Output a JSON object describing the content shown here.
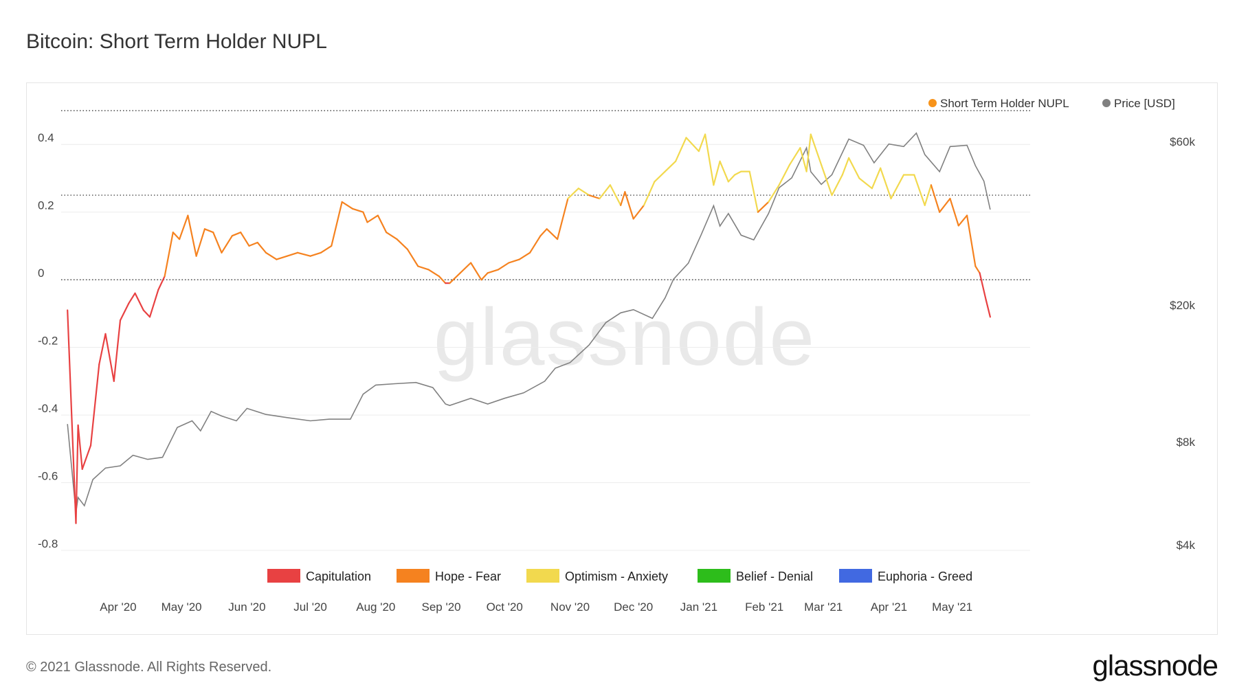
{
  "title": "Bitcoin: Short Term Holder NUPL",
  "footer": {
    "copyright": "© 2021 Glassnode. All Rights Reserved.",
    "logo": "glassnode"
  },
  "watermark": "glassnode",
  "chart_data": {
    "type": "line",
    "title": "Bitcoin: Short Term Holder NUPL",
    "x_tick_labels": [
      "Apr '20",
      "May '20",
      "Jun '20",
      "Jul '20",
      "Aug '20",
      "Sep '20",
      "Oct '20",
      "Nov '20",
      "Dec '20",
      "Jan '21",
      "Feb '21",
      "Mar '21",
      "Apr '21",
      "May '21"
    ],
    "x_range": [
      "2020-03-05",
      "2021-05-20"
    ],
    "y_left": {
      "ticks": [
        0.4,
        0.2,
        0,
        -0.2,
        -0.4,
        -0.6,
        -0.8
      ],
      "tick_labels": [
        "0.4",
        "0.2",
        "0",
        "-0.2",
        "-0.4",
        "-0.6",
        "-0.8"
      ],
      "range": [
        -0.8,
        0.5
      ]
    },
    "y_right": {
      "scale": "log",
      "ticks": [
        60000,
        20000,
        8000,
        4000
      ],
      "tick_labels": [
        "$60k",
        "$20k",
        "$8k",
        "$4k"
      ],
      "range": [
        4000,
        60000
      ]
    },
    "reference_lines": [
      0.5,
      0.25,
      0
    ],
    "legend_top": [
      {
        "name": "Short Term Holder NUPL",
        "color": "#f7931a"
      },
      {
        "name": "Price [USD]",
        "color": "#808080"
      }
    ],
    "legend_bottom": [
      {
        "name": "Capitulation",
        "color": "#e84142"
      },
      {
        "name": "Hope - Fear",
        "color": "#f5821f"
      },
      {
        "name": "Optimism - Anxiety",
        "color": "#f2d94e"
      },
      {
        "name": "Belief - Denial",
        "color": "#2dbd1b"
      },
      {
        "name": "Euphoria - Greed",
        "color": "#4169e1"
      }
    ],
    "legend_placement": {
      "series": "top-right",
      "zones": "bottom"
    },
    "grid": true,
    "series": [
      {
        "name": "Short Term Holder NUPL",
        "x": [
          "2020-03-08",
          "2020-03-12",
          "2020-03-13",
          "2020-03-15",
          "2020-03-19",
          "2020-03-23",
          "2020-03-26",
          "2020-03-30",
          "2020-04-02",
          "2020-04-06",
          "2020-04-09",
          "2020-04-13",
          "2020-04-16",
          "2020-04-20",
          "2020-04-23",
          "2020-04-27",
          "2020-04-30",
          "2020-05-04",
          "2020-05-08",
          "2020-05-12",
          "2020-05-16",
          "2020-05-20",
          "2020-05-25",
          "2020-05-29",
          "2020-06-02",
          "2020-06-06",
          "2020-06-10",
          "2020-06-15",
          "2020-06-20",
          "2020-06-25",
          "2020-07-01",
          "2020-07-06",
          "2020-07-11",
          "2020-07-16",
          "2020-07-21",
          "2020-07-26",
          "2020-07-28",
          "2020-08-02",
          "2020-08-06",
          "2020-08-11",
          "2020-08-16",
          "2020-08-21",
          "2020-08-26",
          "2020-08-31",
          "2020-09-03",
          "2020-09-05",
          "2020-09-10",
          "2020-09-15",
          "2020-09-20",
          "2020-09-23",
          "2020-09-28",
          "2020-10-03",
          "2020-10-08",
          "2020-10-13",
          "2020-10-18",
          "2020-10-21",
          "2020-10-26",
          "2020-10-31",
          "2020-11-05",
          "2020-11-10",
          "2020-11-15",
          "2020-11-20",
          "2020-11-25",
          "2020-11-27",
          "2020-12-01",
          "2020-12-06",
          "2020-12-11",
          "2020-12-16",
          "2020-12-21",
          "2020-12-26",
          "2021-01-01",
          "2021-01-04",
          "2021-01-08",
          "2021-01-11",
          "2021-01-15",
          "2021-01-18",
          "2021-01-21",
          "2021-01-25",
          "2021-01-29",
          "2021-02-03",
          "2021-02-08",
          "2021-02-13",
          "2021-02-18",
          "2021-02-21",
          "2021-02-23",
          "2021-02-28",
          "2021-03-05",
          "2021-03-10",
          "2021-03-13",
          "2021-03-18",
          "2021-03-24",
          "2021-03-28",
          "2021-04-02",
          "2021-04-08",
          "2021-04-13",
          "2021-04-18",
          "2021-04-21",
          "2021-04-25",
          "2021-04-30",
          "2021-05-04",
          "2021-05-08",
          "2021-05-12",
          "2021-05-14",
          "2021-05-17",
          "2021-05-19"
        ],
        "values": [
          -0.09,
          -0.72,
          -0.43,
          -0.56,
          -0.49,
          -0.25,
          -0.16,
          -0.3,
          -0.12,
          -0.07,
          -0.04,
          -0.09,
          -0.11,
          -0.03,
          0.01,
          0.14,
          0.12,
          0.19,
          0.07,
          0.15,
          0.14,
          0.08,
          0.13,
          0.14,
          0.1,
          0.11,
          0.08,
          0.06,
          0.07,
          0.08,
          0.07,
          0.08,
          0.1,
          0.23,
          0.21,
          0.2,
          0.17,
          0.19,
          0.14,
          0.12,
          0.09,
          0.04,
          0.03,
          0.01,
          -0.01,
          -0.01,
          0.02,
          0.05,
          0.0,
          0.02,
          0.03,
          0.05,
          0.06,
          0.08,
          0.13,
          0.15,
          0.12,
          0.24,
          0.27,
          0.25,
          0.24,
          0.28,
          0.22,
          0.26,
          0.18,
          0.22,
          0.29,
          0.32,
          0.35,
          0.42,
          0.38,
          0.43,
          0.28,
          0.35,
          0.29,
          0.31,
          0.32,
          0.32,
          0.2,
          0.23,
          0.28,
          0.34,
          0.39,
          0.32,
          0.43,
          0.34,
          0.25,
          0.31,
          0.36,
          0.3,
          0.27,
          0.33,
          0.24,
          0.31,
          0.31,
          0.22,
          0.28,
          0.2,
          0.24,
          0.16,
          0.19,
          0.04,
          0.02,
          -0.06,
          -0.11
        ],
        "color": "#f7931a"
      },
      {
        "name": "Price [USD]",
        "x": [
          "2020-03-08",
          "2020-03-12",
          "2020-03-13",
          "2020-03-16",
          "2020-03-20",
          "2020-03-26",
          "2020-04-02",
          "2020-04-08",
          "2020-04-15",
          "2020-04-22",
          "2020-04-29",
          "2020-05-06",
          "2020-05-10",
          "2020-05-15",
          "2020-05-20",
          "2020-05-27",
          "2020-06-01",
          "2020-06-10",
          "2020-06-20",
          "2020-07-01",
          "2020-07-10",
          "2020-07-20",
          "2020-07-26",
          "2020-08-01",
          "2020-08-10",
          "2020-08-20",
          "2020-08-28",
          "2020-09-03",
          "2020-09-05",
          "2020-09-15",
          "2020-09-23",
          "2020-10-01",
          "2020-10-10",
          "2020-10-20",
          "2020-10-25",
          "2020-11-01",
          "2020-11-10",
          "2020-11-18",
          "2020-11-25",
          "2020-12-01",
          "2020-12-10",
          "2020-12-16",
          "2020-12-20",
          "2020-12-27",
          "2021-01-02",
          "2021-01-08",
          "2021-01-11",
          "2021-01-15",
          "2021-01-21",
          "2021-01-27",
          "2021-02-03",
          "2021-02-08",
          "2021-02-14",
          "2021-02-21",
          "2021-02-23",
          "2021-02-28",
          "2021-03-05",
          "2021-03-13",
          "2021-03-20",
          "2021-03-25",
          "2021-04-01",
          "2021-04-08",
          "2021-04-14",
          "2021-04-18",
          "2021-04-25",
          "2021-04-30",
          "2021-05-08",
          "2021-05-12",
          "2021-05-16",
          "2021-05-19"
        ],
        "values": [
          9000,
          4970,
          5500,
          5200,
          6200,
          6700,
          6800,
          7300,
          7100,
          7200,
          8800,
          9200,
          8600,
          9800,
          9500,
          9200,
          10000,
          9600,
          9400,
          9200,
          9300,
          9300,
          11000,
          11700,
          11800,
          11900,
          11500,
          10300,
          10200,
          10700,
          10300,
          10700,
          11100,
          12000,
          13100,
          13600,
          15300,
          17800,
          19000,
          19400,
          18300,
          21000,
          23800,
          26500,
          32000,
          39000,
          34000,
          37000,
          32000,
          31000,
          37000,
          44000,
          47000,
          57500,
          49000,
          45000,
          48000,
          61000,
          58500,
          52000,
          59000,
          58000,
          63500,
          55000,
          49000,
          58000,
          58500,
          51000,
          46000,
          38000
        ],
        "color": "#808080"
      }
    ]
  }
}
